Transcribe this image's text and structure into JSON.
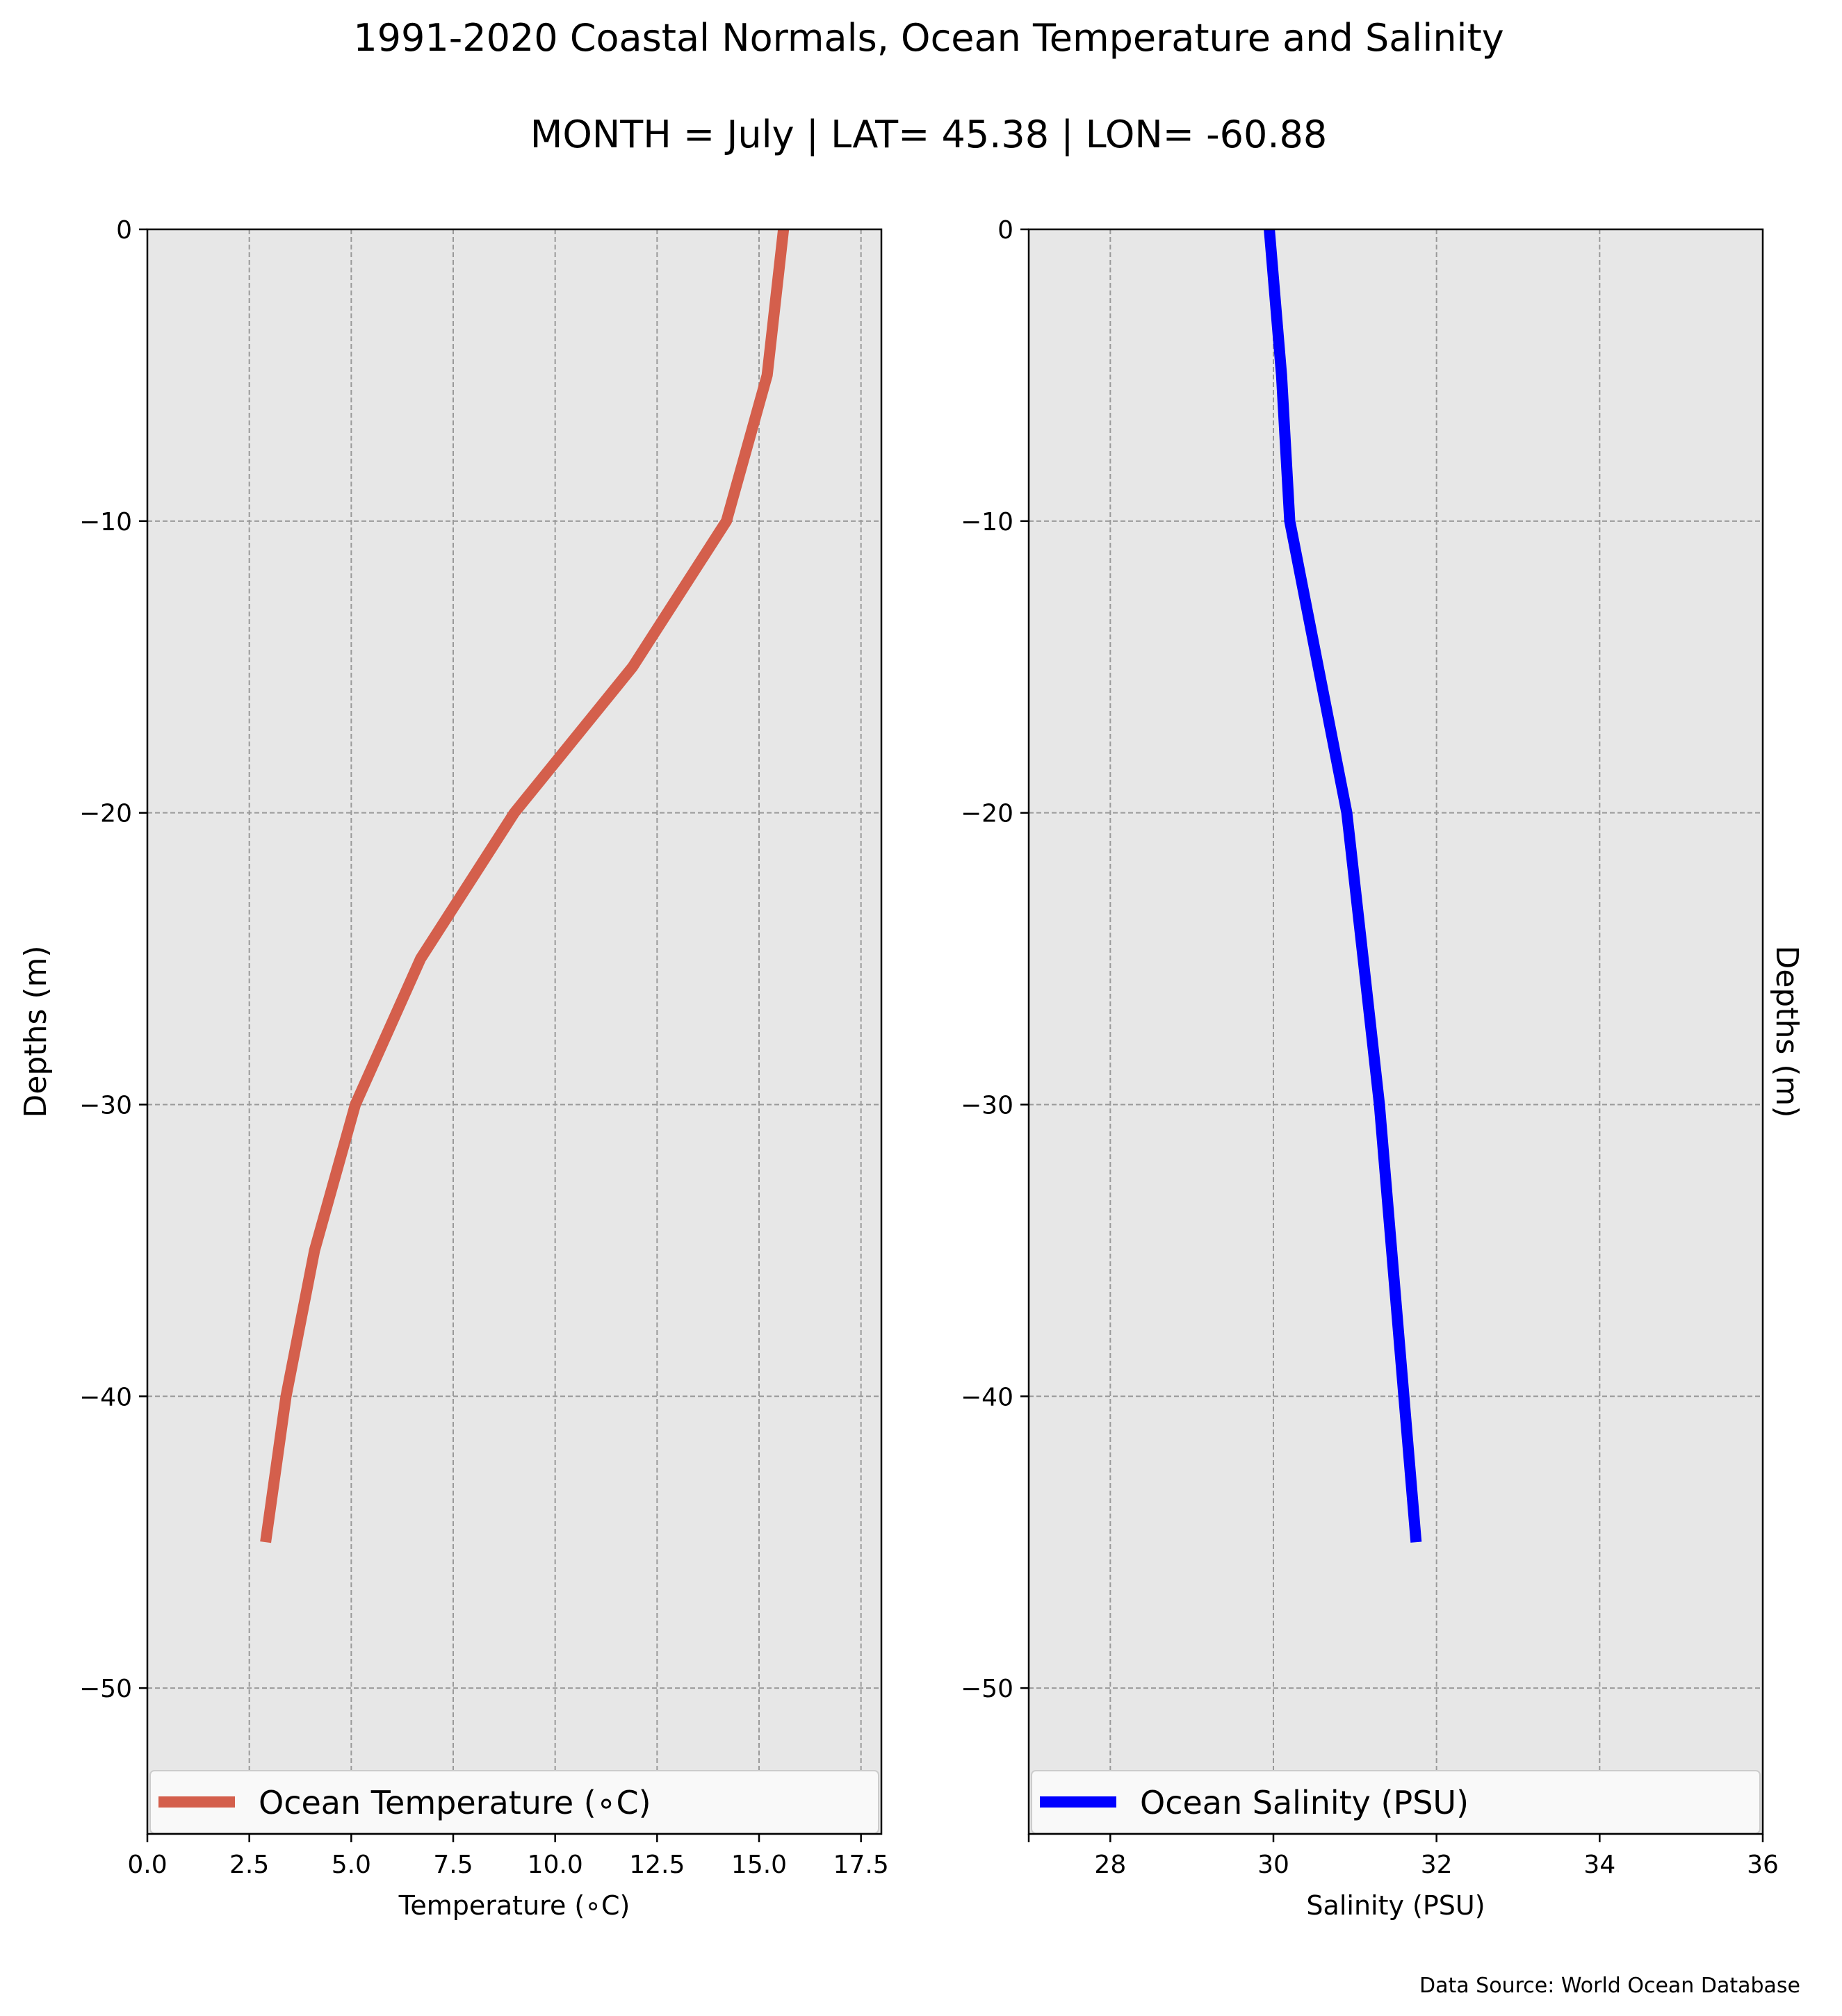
{
  "figure": {
    "title": "1991-2020 Coastal Normals, Ocean Temperature and Salinity",
    "subtitle": "MONTH = July | LAT= 45.38 | LON= -60.88",
    "source_note": "Data Source: World Ocean Database"
  },
  "chart_data": [
    {
      "type": "line",
      "xlabel": "Temperature (∘C)",
      "ylabel": "Depths (m)",
      "xlim": [
        0,
        18
      ],
      "ylim": [
        -55,
        0
      ],
      "xticks": [
        "0.0",
        "2.5",
        "5.0",
        "7.5",
        "10.0",
        "12.5",
        "15.0",
        "17.5"
      ],
      "xtick_values": [
        0,
        2.5,
        5,
        7.5,
        10,
        12.5,
        15,
        17.5
      ],
      "yticks": [
        "0",
        "−10",
        "−20",
        "−30",
        "−40",
        "−50"
      ],
      "ytick_values": [
        0,
        -10,
        -20,
        -30,
        -40,
        -50
      ],
      "grid": true,
      "legend_position": "bottom",
      "series": [
        {
          "name": "Ocean Temperature (∘C)",
          "color": "#d45f4c",
          "x": [
            15.6,
            15.2,
            14.2,
            11.9,
            9.0,
            6.7,
            5.1,
            4.1,
            3.4,
            2.9
          ],
          "y": [
            0,
            -5,
            -10,
            -15,
            -20,
            -25,
            -30,
            -35,
            -40,
            -45
          ]
        }
      ]
    },
    {
      "type": "line",
      "xlabel": "Salinity (PSU)",
      "ylabel": "Depths (m)",
      "xlim": [
        27,
        36
      ],
      "ylim": [
        -55,
        0
      ],
      "xticks": [
        "28",
        "30",
        "32",
        "34",
        "36"
      ],
      "xtick_values": [
        28,
        30,
        32,
        34,
        36
      ],
      "yticks": [
        "0",
        "−10",
        "−20",
        "−30",
        "−40",
        "−50"
      ],
      "ytick_values": [
        0,
        -10,
        -20,
        -30,
        -40,
        -50
      ],
      "grid": true,
      "legend_position": "bottom",
      "series": [
        {
          "name": "Ocean Salinity (PSU)",
          "color": "#0000ff",
          "x": [
            29.95,
            30.1,
            30.2,
            30.55,
            30.9,
            31.1,
            31.3,
            31.45,
            31.6,
            31.75
          ],
          "y": [
            0,
            -5,
            -10,
            -15,
            -20,
            -25,
            -30,
            -35,
            -40,
            -45
          ]
        }
      ]
    }
  ]
}
